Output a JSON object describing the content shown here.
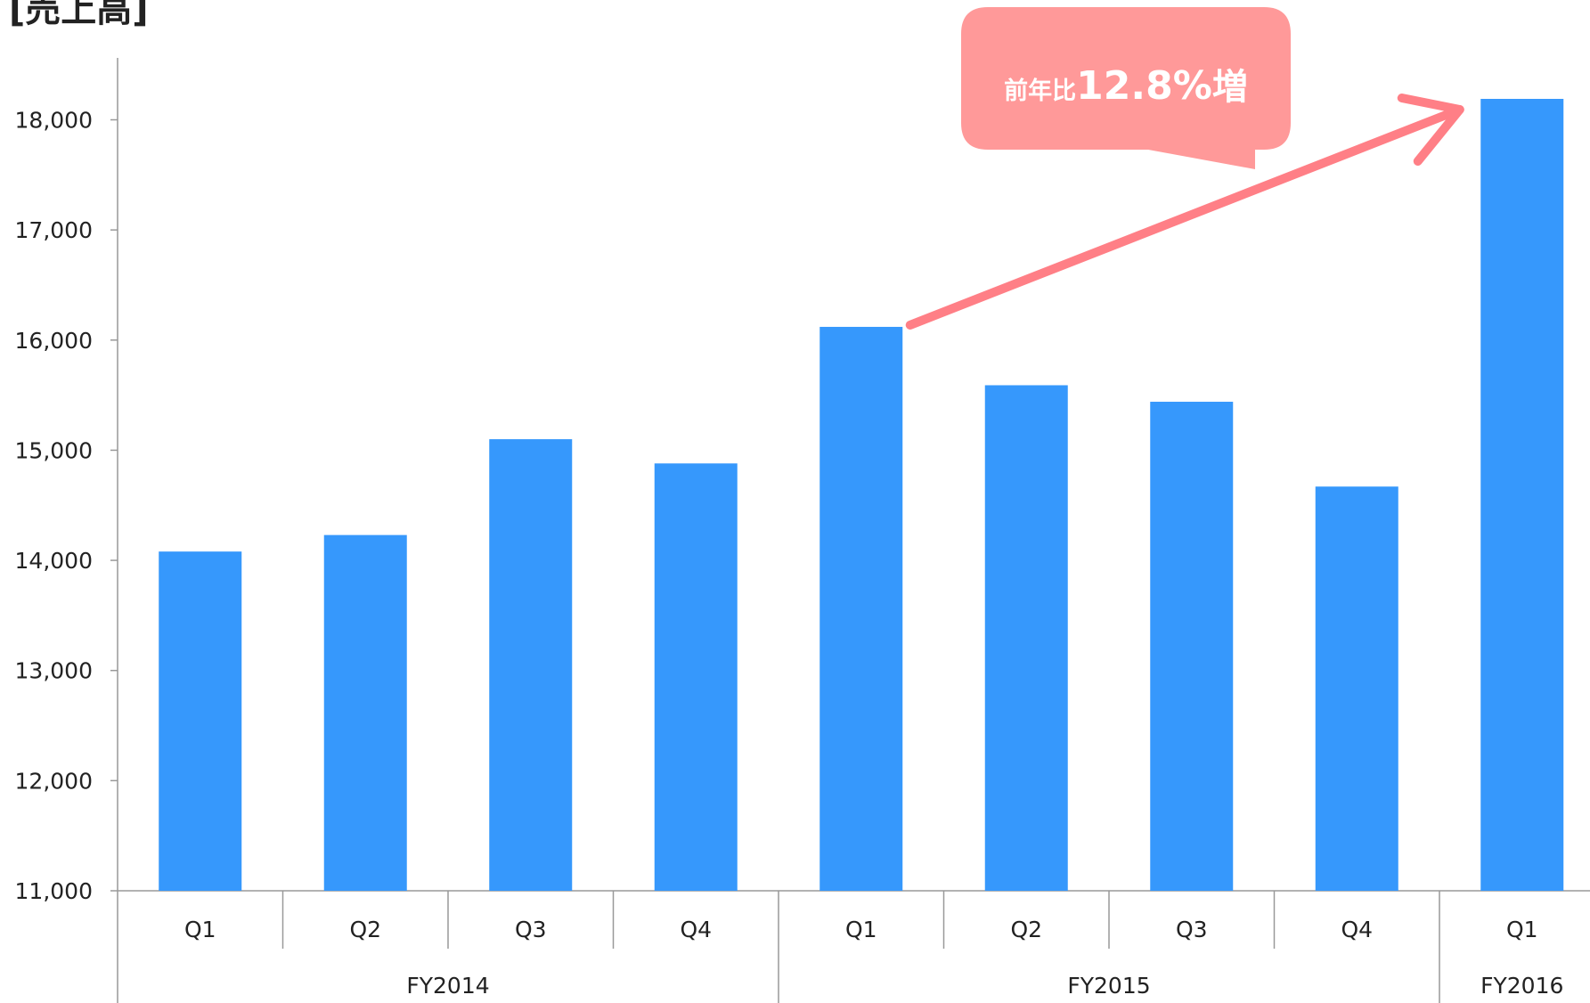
{
  "chart_data": {
    "type": "bar",
    "title": "[売上高]",
    "categories": [
      "Q1",
      "Q2",
      "Q3",
      "Q4",
      "Q1",
      "Q2",
      "Q3",
      "Q4",
      "Q1"
    ],
    "groups": [
      {
        "label": "FY2014",
        "count": 4
      },
      {
        "label": "FY2015",
        "count": 4
      },
      {
        "label": "FY2016",
        "count": 1
      }
    ],
    "values": [
      14080,
      14230,
      15100,
      14880,
      16120,
      15590,
      15440,
      14670,
      18190
    ],
    "ylim": [
      11000,
      18500
    ],
    "yticks": [
      11000,
      12000,
      13000,
      14000,
      15000,
      16000,
      17000,
      18000
    ],
    "ytick_labels": [
      "11,000",
      "12,000",
      "13,000",
      "14,000",
      "15,000",
      "16,000",
      "17,000",
      "18,000"
    ],
    "bar_color": "#3698fc",
    "annotation": {
      "prefix": "前年比",
      "value": "12.8%",
      "suffix": "増",
      "color": "#ff9999",
      "arrow_color": "#ff7f86",
      "from_index": 4,
      "to_index": 8
    }
  }
}
